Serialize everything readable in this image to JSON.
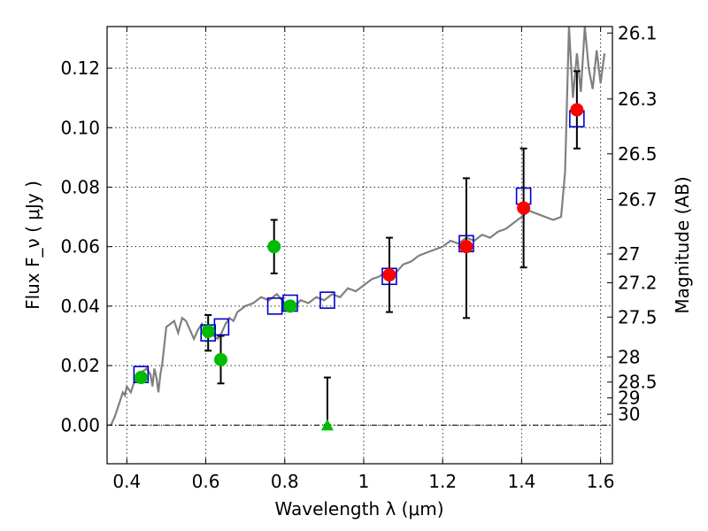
{
  "chart_data": {
    "type": "scatter",
    "title": "",
    "xlabel": "Wavelength  λ (μm)",
    "ylabel": "Flux  F_ν  ( μJy )",
    "y2label": "Magnitude (AB)",
    "xlim": [
      0.35,
      1.63
    ],
    "ylim": [
      -0.013,
      0.134
    ],
    "grid": true,
    "x_ticks": [
      0.4,
      0.6,
      0.8,
      1.0,
      1.2,
      1.4,
      1.6
    ],
    "x_tick_labels": [
      "0.4",
      "0.6",
      "0.8",
      "1",
      "1.2",
      "1.4",
      "1.6"
    ],
    "y_ticks": [
      0.0,
      0.02,
      0.04,
      0.06,
      0.08,
      0.1,
      0.12
    ],
    "y_tick_labels": [
      "0.00",
      "0.02",
      "0.04",
      "0.06",
      "0.08",
      "0.10",
      "0.12"
    ],
    "y2_ticks": [
      {
        "label": "26.1",
        "mag": 26.1
      },
      {
        "label": "26.3",
        "mag": 26.3
      },
      {
        "label": "26.5",
        "mag": 26.5
      },
      {
        "label": "26.7",
        "mag": 26.7
      },
      {
        "label": "27",
        "mag": 27.0
      },
      {
        "label": "27.2",
        "mag": 27.2
      },
      {
        "label": "27.5",
        "mag": 27.5
      },
      {
        "label": "28",
        "mag": 28.0
      },
      {
        "label": "28.5",
        "mag": 28.5
      },
      {
        "label": "29",
        "mag": 29.0
      },
      {
        "label": "30",
        "mag": 30.0
      }
    ],
    "colors": {
      "template": "#808080",
      "model_box": "#0000cc",
      "red_points": "#ff0000",
      "green_points": "#00bb00",
      "error_bar": "#000000"
    },
    "series": [
      {
        "kind": "line",
        "points": [
          [
            0.36,
            0.0
          ],
          [
            0.37,
            0.003
          ],
          [
            0.38,
            0.007
          ],
          [
            0.39,
            0.011
          ],
          [
            0.395,
            0.01
          ],
          [
            0.4,
            0.013
          ],
          [
            0.41,
            0.011
          ],
          [
            0.42,
            0.015
          ],
          [
            0.43,
            0.016
          ],
          [
            0.44,
            0.018
          ],
          [
            0.45,
            0.019
          ],
          [
            0.46,
            0.017
          ],
          [
            0.465,
            0.013
          ],
          [
            0.47,
            0.019
          ],
          [
            0.475,
            0.016
          ],
          [
            0.48,
            0.011
          ],
          [
            0.485,
            0.017
          ],
          [
            0.49,
            0.021
          ],
          [
            0.5,
            0.033
          ],
          [
            0.51,
            0.034
          ],
          [
            0.52,
            0.035
          ],
          [
            0.53,
            0.031
          ],
          [
            0.54,
            0.036
          ],
          [
            0.55,
            0.035
          ],
          [
            0.56,
            0.032
          ],
          [
            0.57,
            0.029
          ],
          [
            0.58,
            0.032
          ],
          [
            0.59,
            0.034
          ],
          [
            0.6,
            0.031
          ],
          [
            0.61,
            0.033
          ],
          [
            0.62,
            0.03
          ],
          [
            0.63,
            0.029
          ],
          [
            0.64,
            0.031
          ],
          [
            0.65,
            0.034
          ],
          [
            0.66,
            0.036
          ],
          [
            0.67,
            0.035
          ],
          [
            0.68,
            0.038
          ],
          [
            0.69,
            0.039
          ],
          [
            0.7,
            0.04
          ],
          [
            0.72,
            0.041
          ],
          [
            0.74,
            0.043
          ],
          [
            0.76,
            0.042
          ],
          [
            0.78,
            0.044
          ],
          [
            0.8,
            0.041
          ],
          [
            0.82,
            0.039
          ],
          [
            0.84,
            0.042
          ],
          [
            0.86,
            0.041
          ],
          [
            0.88,
            0.043
          ],
          [
            0.9,
            0.042
          ],
          [
            0.92,
            0.044
          ],
          [
            0.94,
            0.043
          ],
          [
            0.96,
            0.046
          ],
          [
            0.98,
            0.045
          ],
          [
            1.0,
            0.047
          ],
          [
            1.02,
            0.049
          ],
          [
            1.04,
            0.05
          ],
          [
            1.06,
            0.052
          ],
          [
            1.08,
            0.051
          ],
          [
            1.1,
            0.054
          ],
          [
            1.12,
            0.055
          ],
          [
            1.14,
            0.057
          ],
          [
            1.16,
            0.058
          ],
          [
            1.18,
            0.059
          ],
          [
            1.2,
            0.06
          ],
          [
            1.22,
            0.062
          ],
          [
            1.24,
            0.061
          ],
          [
            1.26,
            0.063
          ],
          [
            1.28,
            0.062
          ],
          [
            1.3,
            0.064
          ],
          [
            1.32,
            0.063
          ],
          [
            1.34,
            0.065
          ],
          [
            1.36,
            0.066
          ],
          [
            1.38,
            0.068
          ],
          [
            1.4,
            0.07
          ],
          [
            1.42,
            0.072
          ],
          [
            1.44,
            0.071
          ],
          [
            1.46,
            0.07
          ],
          [
            1.48,
            0.069
          ],
          [
            1.5,
            0.07
          ],
          [
            1.51,
            0.085
          ],
          [
            1.52,
            0.134
          ],
          [
            1.53,
            0.11
          ],
          [
            1.54,
            0.125
          ],
          [
            1.55,
            0.112
          ],
          [
            1.56,
            0.134
          ],
          [
            1.57,
            0.12
          ],
          [
            1.58,
            0.113
          ],
          [
            1.59,
            0.126
          ],
          [
            1.6,
            0.115
          ],
          [
            1.61,
            0.125
          ]
        ]
      },
      {
        "kind": "model_boxes",
        "points": [
          [
            0.436,
            0.017
          ],
          [
            0.606,
            0.031
          ],
          [
            0.64,
            0.033
          ],
          [
            0.775,
            0.04
          ],
          [
            0.814,
            0.041
          ],
          [
            0.908,
            0.042
          ],
          [
            1.065,
            0.05
          ],
          [
            1.26,
            0.061
          ],
          [
            1.405,
            0.077
          ],
          [
            1.54,
            0.103
          ]
        ]
      },
      {
        "kind": "green_points",
        "points": [
          [
            0.436,
            0.016
          ],
          [
            0.606,
            0.0315
          ],
          [
            0.638,
            0.022
          ],
          [
            0.773,
            0.06
          ],
          [
            0.814,
            0.04
          ]
        ],
        "errors": [
          null,
          [
            0.025,
            0.037
          ],
          [
            0.014,
            0.03
          ],
          [
            0.051,
            0.069
          ],
          null
        ]
      },
      {
        "kind": "green_triangle",
        "points": [
          [
            0.908,
            0.0
          ]
        ],
        "errors": [
          [
            0.0,
            0.016
          ]
        ]
      },
      {
        "kind": "red_points",
        "points": [
          [
            1.065,
            0.0505
          ],
          [
            1.26,
            0.06
          ],
          [
            1.405,
            0.073
          ],
          [
            1.54,
            0.106
          ]
        ],
        "errors": [
          [
            0.038,
            0.063
          ],
          [
            0.036,
            0.083
          ],
          [
            0.053,
            0.093
          ],
          [
            0.093,
            0.119
          ]
        ]
      }
    ]
  }
}
